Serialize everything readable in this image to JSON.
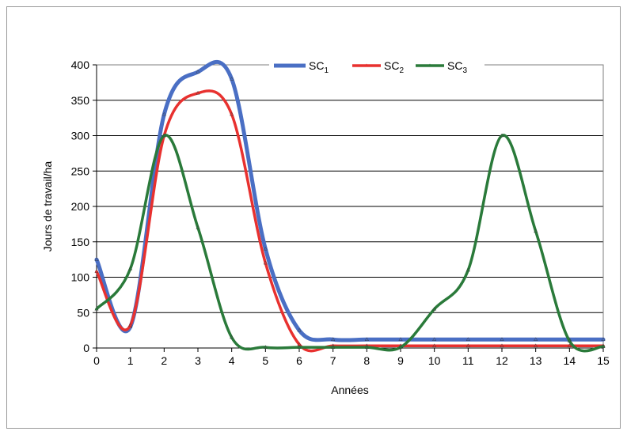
{
  "chart_data": {
    "type": "line",
    "title": "",
    "xlabel": "Années",
    "ylabel": "Jours de travail/ha",
    "xlim": [
      0,
      15
    ],
    "ylim": [
      0,
      400
    ],
    "x_ticks": [
      "0",
      "1",
      "2",
      "3",
      "4",
      "5",
      "6",
      "7",
      "8",
      "9",
      "10",
      "11",
      "12",
      "13",
      "14",
      "15"
    ],
    "y_ticks": [
      "0",
      "50",
      "100",
      "150",
      "200",
      "250",
      "300",
      "350",
      "400"
    ],
    "grid": "horizontal",
    "legend_position": "top-right",
    "x": [
      0,
      1,
      2,
      3,
      4,
      5,
      6,
      7,
      8,
      9,
      10,
      11,
      12,
      13,
      14,
      15
    ],
    "series": [
      {
        "name": "SC",
        "subscript": "1",
        "color": "#4a6fc4",
        "values": [
          125,
          30,
          330,
          390,
          380,
          140,
          25,
          12,
          12,
          12,
          12,
          12,
          12,
          12,
          12,
          12
        ]
      },
      {
        "name": "SC",
        "subscript": "2",
        "color": "#e8312f",
        "values": [
          108,
          32,
          300,
          360,
          330,
          120,
          5,
          3,
          3,
          3,
          3,
          3,
          3,
          3,
          3,
          3
        ]
      },
      {
        "name": "SC",
        "subscript": "3",
        "color": "#2a7a3a",
        "values": [
          55,
          112,
          300,
          170,
          15,
          1,
          1,
          1,
          1,
          1,
          55,
          110,
          300,
          165,
          10,
          2
        ]
      }
    ]
  }
}
